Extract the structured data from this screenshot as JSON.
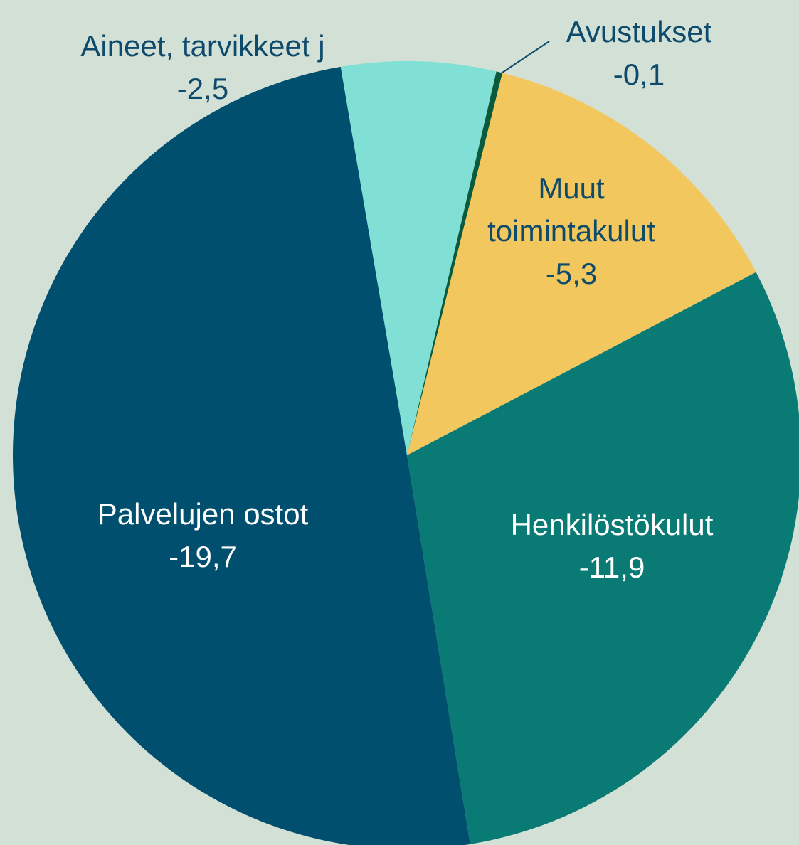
{
  "chart_data": {
    "type": "pie",
    "categories": [
      "Avustukset",
      "Muut toimintakulut",
      "Henkilöstökulut",
      "Palvelujen ostot",
      "Aineet, tarvikkeet j"
    ],
    "values": [
      -0.1,
      -5.3,
      -11.9,
      -19.7,
      -2.5
    ],
    "value_labels": [
      "-0,1",
      "-5,3",
      "-11,9",
      "-19,7",
      "-2,5"
    ],
    "colors": [
      "#0b5a3c",
      "#f2c75e",
      "#0a7a74",
      "#004f6e",
      "#80e0d5"
    ]
  }
}
